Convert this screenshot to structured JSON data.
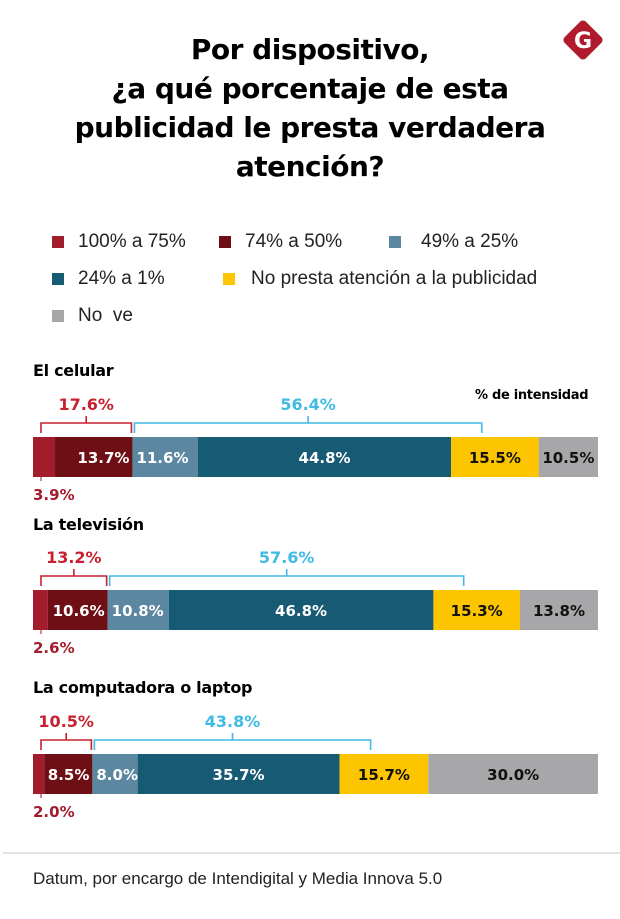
{
  "title_lines": [
    "Por dispositivo,",
    "¿a qué porcentaje de esta",
    "publicidad le presta verdadera",
    "atención?"
  ],
  "logo": {
    "letter": "G",
    "color": "#b01c2e",
    "icon": "brand-logo-icon"
  },
  "legend": [
    {
      "label": "100% a 75%",
      "color": "#a31c2b"
    },
    {
      "label": "74% a 50%",
      "color": "#6e0f16"
    },
    {
      "label": "49% a 25%",
      "color": "#5b87a0"
    },
    {
      "label": "24% a 1%",
      "color": "#165a74"
    },
    {
      "label": "No presta atención a la publicidad",
      "color": "#fdc400"
    },
    {
      "label": "No  ve",
      "color": "#a7a7aa"
    }
  ],
  "intensity_label": "% de intensidad",
  "colors": {
    "bracket_high": "#c8202f",
    "bracket_low": "#3fbbe4",
    "small_label": "#a31c2b",
    "label_light": "#ffffff",
    "label_dark": "#111111"
  },
  "chart_data": {
    "type": "bar",
    "orientation": "horizontal-stacked",
    "title": "Por dispositivo, ¿a qué porcentaje de esta publicidad le presta verdadera atención?",
    "series_names": [
      "100% a 75%",
      "74% a 50%",
      "49% a 25%",
      "24% a 1%",
      "No presta atención a la publicidad",
      "No  ve"
    ],
    "categories": [
      "El celular",
      "La televisión",
      "La computadora o laptop"
    ],
    "xlim": [
      0,
      100
    ],
    "unit": "%",
    "rows": [
      {
        "name": "El celular",
        "values": [
          3.9,
          13.7,
          11.6,
          44.8,
          15.5,
          10.5
        ],
        "labels": [
          "3.9%",
          "13.7%",
          "11.6%",
          "44.8%",
          "15.5%",
          "10.5%"
        ],
        "bracket_high": {
          "label": "17.6%",
          "span": [
            0,
            1
          ]
        },
        "bracket_low": {
          "label": "56.4%",
          "span": [
            2,
            3
          ]
        }
      },
      {
        "name": "La televisión",
        "values": [
          2.6,
          10.6,
          10.8,
          46.8,
          15.3,
          13.8
        ],
        "labels": [
          "2.6%",
          "10.6%",
          "10.8%",
          "46.8%",
          "15.3%",
          "13.8%"
        ],
        "bracket_high": {
          "label": "13.2%",
          "span": [
            0,
            1
          ]
        },
        "bracket_low": {
          "label": "57.6%",
          "span": [
            2,
            3
          ]
        }
      },
      {
        "name": "La computadora o laptop",
        "values": [
          2.0,
          8.5,
          8.0,
          35.7,
          15.7,
          30.0
        ],
        "labels": [
          "2.0%",
          "8.5%",
          "8.0%",
          "35.7%",
          "15.7%",
          "30.0%"
        ],
        "bracket_high": {
          "label": "10.5%",
          "span": [
            0,
            1
          ]
        },
        "bracket_low": {
          "label": "43.8%",
          "span": [
            2,
            3
          ]
        }
      }
    ]
  },
  "source": "Datum, por encargo de Intendigital y Media Innova 5.0"
}
